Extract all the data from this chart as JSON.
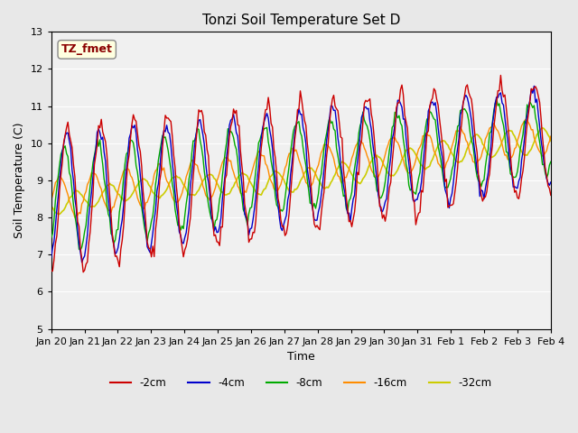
{
  "title": "Tonzi Soil Temperature Set D",
  "xlabel": "Time",
  "ylabel": "Soil Temperature (C)",
  "ylim": [
    5.0,
    13.0
  ],
  "yticks": [
    5.0,
    6.0,
    7.0,
    8.0,
    9.0,
    10.0,
    11.0,
    12.0,
    13.0
  ],
  "xtick_labels": [
    "Jan 20",
    "Jan 21",
    "Jan 22",
    "Jan 23",
    "Jan 24",
    "Jan 25",
    "Jan 26",
    "Jan 27",
    "Jan 28",
    "Jan 29",
    "Jan 30",
    "Jan 31",
    "Feb 1",
    "Feb 2",
    "Feb 3",
    "Feb 4"
  ],
  "annotation_text": "TZ_fmet",
  "annotation_color": "#8B0000",
  "annotation_bg": "#FFFFE0",
  "colors": {
    "-2cm": "#CC0000",
    "-4cm": "#0000CC",
    "-8cm": "#00AA00",
    "-16cm": "#FF8C00",
    "-32cm": "#CCCC00"
  },
  "legend_labels": [
    "-2cm",
    "-4cm",
    "-8cm",
    "-16cm",
    "-32cm"
  ],
  "bg_color": "#E8E8E8",
  "plot_bg_color": "#F0F0F0",
  "n_days": 15
}
